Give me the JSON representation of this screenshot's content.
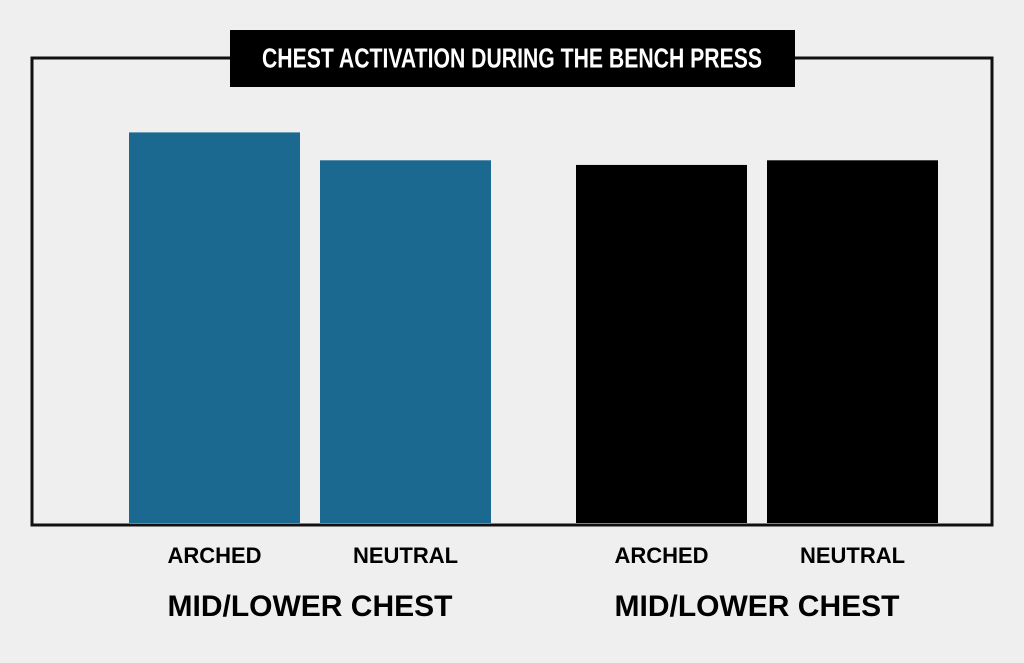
{
  "chart_data": {
    "type": "bar",
    "title": "CHEST ACTIVATION DURING THE BENCH PRESS",
    "ylim": [
      0,
      100
    ],
    "groups": [
      {
        "name": "MID/LOWER CHEST",
        "color": "#1b6890",
        "categories": [
          "ARCHED",
          "NEUTRAL"
        ],
        "values": [
          84,
          78
        ]
      },
      {
        "name": "MID/LOWER CHEST",
        "color": "#000000",
        "categories": [
          "ARCHED",
          "NEUTRAL"
        ],
        "values": [
          77,
          78
        ]
      }
    ]
  }
}
